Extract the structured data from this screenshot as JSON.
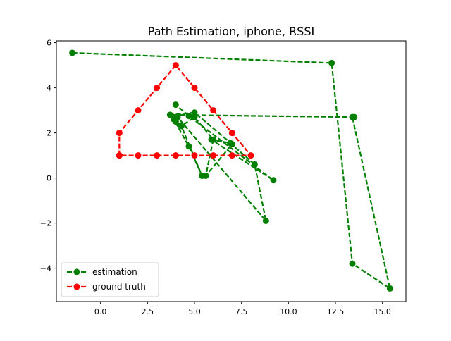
{
  "chart_data": {
    "type": "line",
    "title": "Path Estimation, iphone, RSSI",
    "xlabel": "",
    "ylabel": "",
    "xlim": [
      -2.35,
      16.25
    ],
    "ylim": [
      -5.48,
      6.08
    ],
    "xticks": [
      0.0,
      2.5,
      5.0,
      7.5,
      10.0,
      12.5,
      15.0
    ],
    "xtick_labels": [
      "0.0",
      "2.5",
      "5.0",
      "7.5",
      "10.0",
      "12.5",
      "15.0"
    ],
    "yticks": [
      -4,
      -2,
      0,
      2,
      4,
      6
    ],
    "ytick_labels": [
      "−4",
      "−2",
      "0",
      "2",
      "4",
      "6"
    ],
    "grid": false,
    "legend_position": "lower-left",
    "series": [
      {
        "name": "estimation",
        "color": "#008000",
        "style": "dashed",
        "marker": "circle",
        "x": [
          -1.5,
          12.3,
          13.4,
          15.4,
          13.4,
          13.5,
          3.7,
          5.0,
          7.0,
          5.6,
          6.0,
          5.0,
          4.3,
          4.0,
          3.9,
          4.7,
          5.4,
          4.1,
          8.8,
          8.2,
          6.9,
          5.9,
          9.2,
          4.7,
          4.0
        ],
        "y": [
          5.55,
          5.1,
          -3.8,
          -4.9,
          2.7,
          2.7,
          2.8,
          2.9,
          1.5,
          0.1,
          1.7,
          2.7,
          2.3,
          2.5,
          2.6,
          1.4,
          0.1,
          2.7,
          -1.9,
          0.6,
          1.55,
          1.7,
          -0.1,
          2.75,
          3.25
        ]
      },
      {
        "name": "ground truth",
        "color": "#ff0000",
        "style": "dashed",
        "marker": "circle",
        "x": [
          1,
          1,
          2,
          3,
          4,
          5,
          6,
          7,
          8,
          7,
          6,
          5,
          4,
          3,
          2,
          1
        ],
        "y": [
          1,
          2,
          3,
          4,
          5,
          4,
          3,
          2,
          1,
          1,
          1,
          1,
          1,
          1,
          1,
          1
        ]
      }
    ]
  }
}
